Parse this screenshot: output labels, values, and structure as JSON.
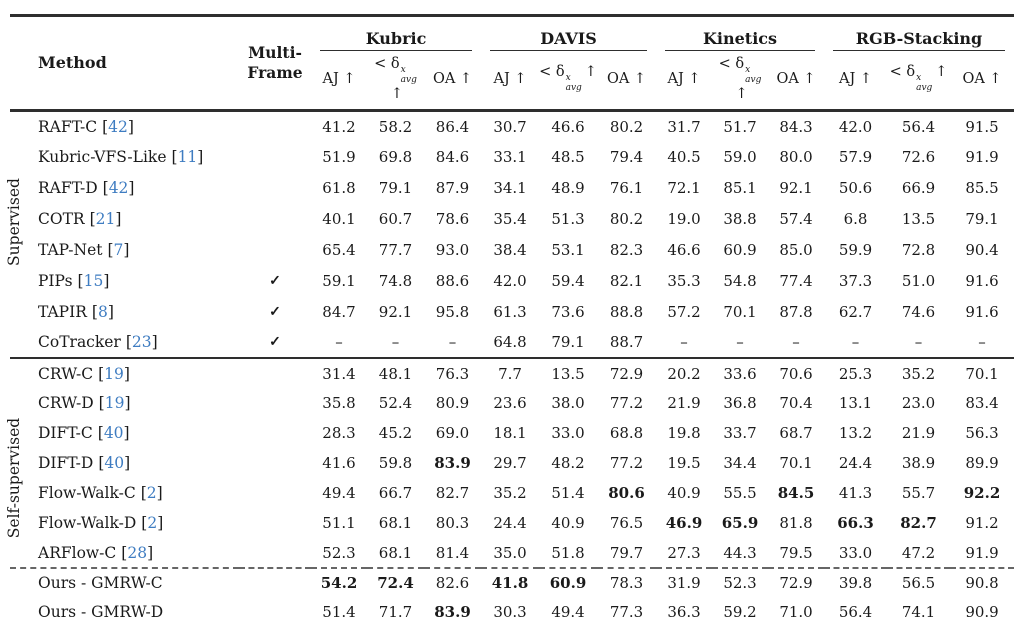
{
  "header": {
    "method": "Method",
    "multiframe": [
      "Multi-",
      "Frame"
    ],
    "groups": [
      {
        "name": "Kubric"
      },
      {
        "name": "DAVIS"
      },
      {
        "name": "Kinetics"
      },
      {
        "name": "RGB-Stacking"
      }
    ],
    "metrics": {
      "aj": "AJ ↑",
      "delta_prefix": "< δ",
      "delta_sup": "x",
      "delta_sub": "avg",
      "delta_arrow": "↑",
      "oa": "OA ↑"
    }
  },
  "cite": {
    "open": "[",
    "close": "]"
  },
  "colors": {
    "citation_blue": "#3e7cc1",
    "text": "#1a1a1a",
    "rule": "#2e2e2e"
  },
  "sections": [
    {
      "label": "Supervised",
      "rows": [
        {
          "method": "RAFT-C",
          "cite": "42",
          "multi_frame": "",
          "values": [
            "41.2",
            "58.2",
            "86.4",
            "30.7",
            "46.6",
            "80.2",
            "31.7",
            "51.7",
            "84.3",
            "42.0",
            "56.4",
            "91.5"
          ]
        },
        {
          "method": "Kubric-VFS-Like",
          "cite": "11",
          "multi_frame": "",
          "values": [
            "51.9",
            "69.8",
            "84.6",
            "33.1",
            "48.5",
            "79.4",
            "40.5",
            "59.0",
            "80.0",
            "57.9",
            "72.6",
            "91.9"
          ]
        },
        {
          "method": "RAFT-D",
          "cite": "42",
          "multi_frame": "",
          "values": [
            "61.8",
            "79.1",
            "87.9",
            "34.1",
            "48.9",
            "76.1",
            "72.1",
            "85.1",
            "92.1",
            "50.6",
            "66.9",
            "85.5"
          ]
        },
        {
          "method": "COTR",
          "cite": "21",
          "multi_frame": "",
          "values": [
            "40.1",
            "60.7",
            "78.6",
            "35.4",
            "51.3",
            "80.2",
            "19.0",
            "38.8",
            "57.4",
            "6.8",
            "13.5",
            "79.1"
          ]
        },
        {
          "method": "TAP-Net",
          "cite": "7",
          "multi_frame": "",
          "values": [
            "65.4",
            "77.7",
            "93.0",
            "38.4",
            "53.1",
            "82.3",
            "46.6",
            "60.9",
            "85.0",
            "59.9",
            "72.8",
            "90.4"
          ]
        },
        {
          "method": "PIPs",
          "cite": "15",
          "multi_frame": "✓",
          "values": [
            "59.1",
            "74.8",
            "88.6",
            "42.0",
            "59.4",
            "82.1",
            "35.3",
            "54.8",
            "77.4",
            "37.3",
            "51.0",
            "91.6"
          ]
        },
        {
          "method": "TAPIR",
          "cite": "8",
          "multi_frame": "✓",
          "values": [
            "84.7",
            "92.1",
            "95.8",
            "61.3",
            "73.6",
            "88.8",
            "57.2",
            "70.1",
            "87.8",
            "62.7",
            "74.6",
            "91.6"
          ]
        },
        {
          "method": "CoTracker",
          "cite": "23",
          "multi_frame": "✓",
          "values": [
            "–",
            "–",
            "–",
            "64.8",
            "79.1",
            "88.7",
            "–",
            "–",
            "–",
            "–",
            "–",
            "–"
          ]
        }
      ]
    },
    {
      "label": "Self-supervised",
      "rows": [
        {
          "method": "CRW-C",
          "cite": "19",
          "multi_frame": "",
          "values": [
            "31.4",
            "48.1",
            "76.3",
            "7.7",
            "13.5",
            "72.9",
            "20.2",
            "33.6",
            "70.6",
            "25.3",
            "35.2",
            "70.1"
          ]
        },
        {
          "method": "CRW-D",
          "cite": "19",
          "multi_frame": "",
          "values": [
            "35.8",
            "52.4",
            "80.9",
            "23.6",
            "38.0",
            "77.2",
            "21.9",
            "36.8",
            "70.4",
            "13.1",
            "23.0",
            "83.4"
          ]
        },
        {
          "method": "DIFT-C",
          "cite": "40",
          "multi_frame": "",
          "values": [
            "28.3",
            "45.2",
            "69.0",
            "18.1",
            "33.0",
            "68.8",
            "19.8",
            "33.7",
            "68.7",
            "13.2",
            "21.9",
            "56.3"
          ]
        },
        {
          "method": "DIFT-D",
          "cite": "40",
          "multi_frame": "",
          "values": [
            "41.6",
            "59.8",
            "83.9",
            "29.7",
            "48.2",
            "77.2",
            "19.5",
            "34.4",
            "70.1",
            "24.4",
            "38.9",
            "89.9"
          ],
          "bold": [
            0,
            0,
            1,
            0,
            0,
            0,
            0,
            0,
            0,
            0,
            0,
            0
          ]
        },
        {
          "method": "Flow-Walk-C",
          "cite": "2",
          "multi_frame": "",
          "values": [
            "49.4",
            "66.7",
            "82.7",
            "35.2",
            "51.4",
            "80.6",
            "40.9",
            "55.5",
            "84.5",
            "41.3",
            "55.7",
            "92.2"
          ],
          "bold": [
            0,
            0,
            0,
            0,
            0,
            1,
            0,
            0,
            1,
            0,
            0,
            1
          ]
        },
        {
          "method": "Flow-Walk-D",
          "cite": "2",
          "multi_frame": "",
          "values": [
            "51.1",
            "68.1",
            "80.3",
            "24.4",
            "40.9",
            "76.5",
            "46.9",
            "65.9",
            "81.8",
            "66.3",
            "82.7",
            "91.2"
          ],
          "bold": [
            0,
            0,
            0,
            0,
            0,
            0,
            1,
            1,
            0,
            1,
            1,
            0
          ]
        },
        {
          "method": "ARFlow-C",
          "cite": "28",
          "multi_frame": "",
          "values": [
            "52.3",
            "68.1",
            "81.4",
            "35.0",
            "51.8",
            "79.7",
            "27.3",
            "44.3",
            "79.5",
            "33.0",
            "47.2",
            "91.9"
          ]
        }
      ],
      "ours_rows": [
        {
          "method": "Ours - GMRW-C",
          "multi_frame": "",
          "values": [
            "54.2",
            "72.4",
            "82.6",
            "41.8",
            "60.9",
            "78.3",
            "31.9",
            "52.3",
            "72.9",
            "39.8",
            "56.5",
            "90.8"
          ],
          "bold": [
            1,
            1,
            0,
            1,
            1,
            0,
            0,
            0,
            0,
            0,
            0,
            0
          ]
        },
        {
          "method": "Ours - GMRW-D",
          "multi_frame": "",
          "values": [
            "51.4",
            "71.7",
            "83.9",
            "30.3",
            "49.4",
            "77.3",
            "36.3",
            "59.2",
            "71.0",
            "56.4",
            "74.1",
            "90.9"
          ],
          "bold": [
            0,
            0,
            1,
            0,
            0,
            0,
            0,
            0,
            0,
            0,
            0,
            0
          ]
        }
      ]
    }
  ]
}
